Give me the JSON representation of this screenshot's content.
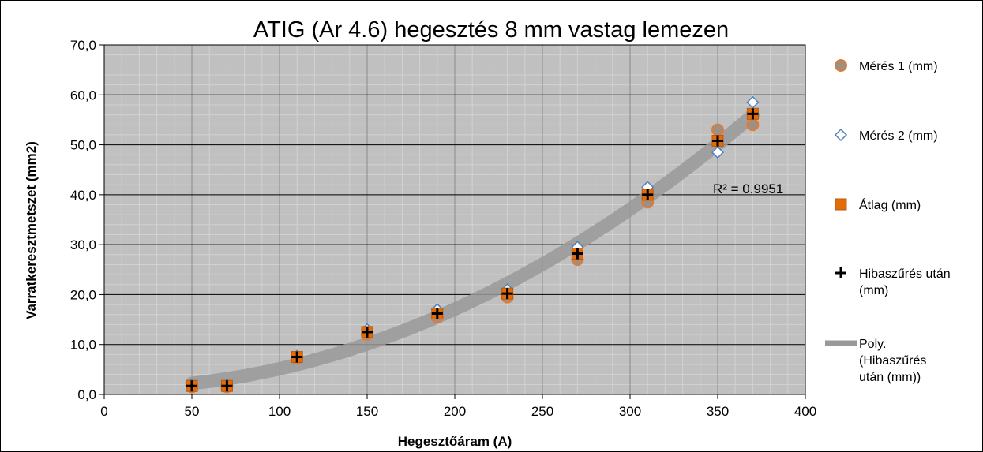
{
  "chart_data": {
    "type": "scatter",
    "title": "ATIG (Ar 4.6) hegesztés 8 mm vastag lemezen",
    "xlabel": "Hegesztőáram (A)",
    "ylabel": "Varratkeresztmetszet (mm2)",
    "xlim": [
      0,
      400
    ],
    "ylim": [
      0,
      70
    ],
    "x_ticks": [
      "0",
      "50",
      "100",
      "150",
      "200",
      "250",
      "300",
      "350",
      "400"
    ],
    "y_ticks": [
      "0,0",
      "10,0",
      "20,0",
      "30,0",
      "40,0",
      "50,0",
      "60,0",
      "70,0"
    ],
    "grid": true,
    "legend_position": "right",
    "annotation": "R² = 0,9951",
    "colors": {
      "plot_bg": "#c0c0c0",
      "series1": "#e07b39",
      "series2": "#4f81bd",
      "series3": "#e36c09",
      "series4": "#000000",
      "trend": "#999999"
    },
    "series": [
      {
        "name": "Mérés 1 (mm)",
        "marker": "circle",
        "points": [
          [
            50,
            1.5
          ],
          [
            70,
            1.5
          ],
          [
            110,
            7.3
          ],
          [
            150,
            12.0
          ],
          [
            190,
            15.5
          ],
          [
            230,
            19.5
          ],
          [
            270,
            27.0
          ],
          [
            310,
            38.5
          ],
          [
            350,
            53.0
          ],
          [
            370,
            54.0
          ]
        ]
      },
      {
        "name": "Mérés 2 (mm)",
        "marker": "diamond",
        "points": [
          [
            50,
            2.0
          ],
          [
            70,
            2.0
          ],
          [
            110,
            7.7
          ],
          [
            150,
            13.0
          ],
          [
            190,
            17.0
          ],
          [
            230,
            21.0
          ],
          [
            270,
            29.5
          ],
          [
            310,
            41.5
          ],
          [
            350,
            48.5
          ],
          [
            370,
            58.5
          ]
        ]
      },
      {
        "name": "Átlag (mm)",
        "marker": "square",
        "points": [
          [
            50,
            1.7
          ],
          [
            70,
            1.7
          ],
          [
            110,
            7.5
          ],
          [
            150,
            12.5
          ],
          [
            190,
            16.2
          ],
          [
            230,
            20.2
          ],
          [
            270,
            28.2
          ],
          [
            310,
            40.0
          ],
          [
            350,
            50.8
          ],
          [
            370,
            56.2
          ]
        ]
      },
      {
        "name": "Hibaszűrés után (mm)",
        "marker": "plus",
        "points": [
          [
            50,
            1.7
          ],
          [
            70,
            1.7
          ],
          [
            110,
            7.5
          ],
          [
            150,
            12.5
          ],
          [
            190,
            16.2
          ],
          [
            230,
            20.2
          ],
          [
            270,
            28.2
          ],
          [
            310,
            40.0
          ],
          [
            350,
            50.8
          ],
          [
            370,
            56.2
          ]
        ]
      },
      {
        "name": "Poly. (Hibaszűrés után (mm))",
        "marker": "line",
        "trend": "polynomial"
      }
    ]
  }
}
